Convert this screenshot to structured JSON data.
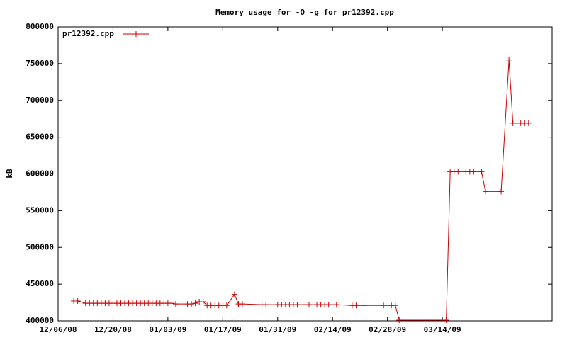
{
  "chart_data": {
    "type": "line",
    "title": "Memory usage for -O -g for pr12392.cpp",
    "y_label": "kB",
    "x": [
      "12/10/08",
      "12/11/08",
      "12/13/08",
      "12/14/08",
      "12/15/08",
      "12/16/08",
      "12/17/08",
      "12/18/08",
      "12/19/08",
      "12/20/08",
      "12/21/08",
      "12/22/08",
      "12/23/08",
      "12/24/08",
      "12/25/08",
      "12/26/08",
      "12/27/08",
      "12/28/08",
      "12/29/08",
      "12/30/08",
      "12/31/08",
      "01/01/09",
      "01/02/09",
      "01/03/09",
      "01/04/09",
      "01/05/09",
      "01/08/09",
      "01/09/09",
      "01/10/09",
      "01/11/09",
      "01/12/09",
      "01/13/09",
      "01/14/09",
      "01/15/09",
      "01/16/09",
      "01/17/09",
      "01/18/09",
      "01/20/09",
      "01/21/09",
      "01/22/09",
      "01/27/09",
      "01/28/09",
      "01/31/09",
      "02/01/09",
      "02/02/09",
      "02/03/09",
      "02/04/09",
      "02/05/09",
      "02/07/09",
      "02/08/09",
      "02/10/09",
      "02/11/09",
      "02/12/09",
      "02/13/09",
      "02/15/09",
      "02/19/09",
      "02/20/09",
      "02/22/09",
      "02/27/09",
      "03/01/09",
      "03/02/09",
      "03/03/09",
      "03/15/09",
      "03/16/09",
      "03/17/09",
      "03/18/09",
      "03/20/09",
      "03/21/09",
      "03/22/09",
      "03/24/09",
      "03/25/09",
      "03/29/09",
      "03/31/09",
      "04/01/09",
      "04/03/09",
      "04/04/09",
      "04/05/09"
    ],
    "series": [
      {
        "name": "pr12392.cpp",
        "color": "#cc0000",
        "values": [
          427000,
          427000,
          424000,
          424000,
          424000,
          424000,
          424000,
          424000,
          424000,
          424000,
          424000,
          424000,
          424000,
          424000,
          424000,
          424000,
          424000,
          424000,
          424000,
          424000,
          424000,
          424000,
          424000,
          424000,
          424000,
          423000,
          423000,
          423000,
          424000,
          426000,
          426000,
          421000,
          421000,
          421000,
          421000,
          421000,
          421000,
          436000,
          423000,
          423000,
          422000,
          422000,
          422000,
          422000,
          422000,
          422000,
          422000,
          422000,
          422000,
          422000,
          422000,
          422000,
          422000,
          422000,
          422000,
          421000,
          421000,
          421000,
          421000,
          421000,
          421000,
          401000,
          401000,
          603000,
          603000,
          603000,
          603000,
          603000,
          603000,
          603000,
          576000,
          576000,
          755000,
          669000,
          669000,
          669000,
          669000
        ]
      }
    ],
    "xlim": [
      "12/06/08",
      "04/11/09"
    ],
    "xticks": [
      "12/06/08",
      "12/20/08",
      "01/03/09",
      "01/17/09",
      "01/31/09",
      "02/14/09",
      "02/28/09",
      "03/14/09"
    ],
    "ylim": [
      400000,
      800000
    ],
    "yticks": [
      400000,
      450000,
      500000,
      550000,
      600000,
      650000,
      700000,
      750000,
      800000
    ],
    "legend": "top-left"
  }
}
